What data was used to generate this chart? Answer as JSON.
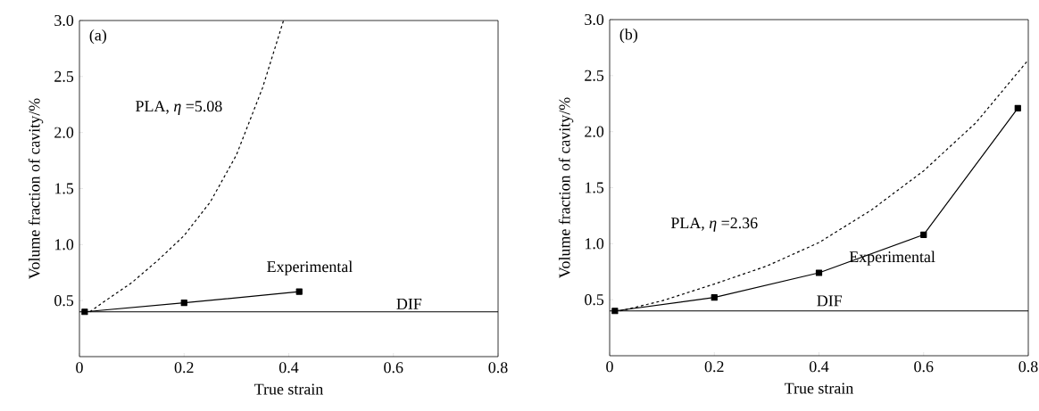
{
  "chart_data": [
    {
      "type": "line",
      "xlabel": "True strain",
      "ylabel": "Volume fraction of cavity/%",
      "annotations": [
        "(a)"
      ],
      "xlim": [
        0,
        0.8
      ],
      "ylim": [
        0,
        3
      ],
      "xticks": [
        0,
        0.2,
        0.4,
        0.6,
        0.8
      ],
      "yticks": [
        0.5,
        {
          "value": 1,
          "label": "1.0"
        },
        1.5,
        {
          "value": 2,
          "label": "2.0"
        },
        2.5,
        {
          "value": 3,
          "label": "3.0"
        }
      ],
      "ref_lines": [
        {
          "axis": "y",
          "value": 0.4,
          "label": "DIF",
          "color": "#000000"
        }
      ],
      "series": [
        {
          "name": "PLA, *η* =5.08",
          "color": "#000000",
          "marker": "none",
          "line_style": "dashed",
          "x": [
            0.02,
            0.05,
            0.1,
            0.15,
            0.2,
            0.25,
            0.3,
            0.35,
            0.39
          ],
          "values": [
            0.4,
            0.5,
            0.66,
            0.86,
            1.08,
            1.38,
            1.8,
            2.4,
            3.0
          ]
        },
        {
          "name": "Experimental",
          "color": "#000000",
          "marker": "square",
          "line_style": "solid",
          "x": [
            0.01,
            0.2,
            0.42
          ],
          "values": [
            0.4,
            0.48,
            0.58
          ]
        }
      ]
    },
    {
      "type": "line",
      "xlabel": "True strain",
      "ylabel": "Volume fraction of cavity/%",
      "annotations": [
        "(b)"
      ],
      "xlim": [
        0,
        0.8
      ],
      "ylim": [
        0,
        3
      ],
      "xticks": [
        0,
        0.2,
        0.4,
        0.6,
        0.8
      ],
      "yticks": [
        0.5,
        {
          "value": 1,
          "label": "1.0"
        },
        1.5,
        {
          "value": 2,
          "label": "2.0"
        },
        2.5,
        {
          "value": 3,
          "label": "3.0"
        }
      ],
      "ref_lines": [
        {
          "axis": "y",
          "value": 0.4,
          "label": "DIF",
          "color": "#000000"
        }
      ],
      "series": [
        {
          "name": "PLA, *η* =2.36",
          "color": "#000000",
          "marker": "none",
          "line_style": "dashed",
          "x": [
            0.02,
            0.1,
            0.2,
            0.3,
            0.4,
            0.5,
            0.6,
            0.7,
            0.8
          ],
          "values": [
            0.4,
            0.49,
            0.64,
            0.8,
            1.01,
            1.3,
            1.65,
            2.08,
            2.64
          ]
        },
        {
          "name": "Experimental",
          "color": "#000000",
          "marker": "square",
          "line_style": "solid",
          "x": [
            0.01,
            0.2,
            0.4,
            0.6,
            0.78
          ],
          "values": [
            0.4,
            0.52,
            0.74,
            1.08,
            2.21
          ]
        }
      ]
    }
  ]
}
